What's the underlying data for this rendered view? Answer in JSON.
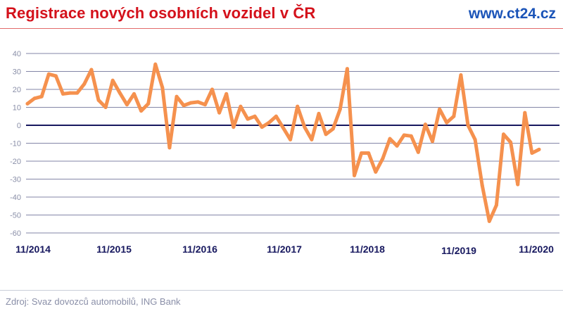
{
  "header": {
    "title": "Registrace nových osobních vozidel v ČR",
    "url": "www.ct24.cz"
  },
  "footer": {
    "source": "Zdroj: Svaz dovozců automobilů, ING Bank"
  },
  "colors": {
    "title": "#d4111b",
    "url": "#1b54b8",
    "line": "#f5914e",
    "grid": "#5a5e8a",
    "zero_line": "#17185f",
    "tick_label": "#8a8fa8",
    "x_label": "#17185f"
  },
  "chart_data": {
    "type": "line",
    "title": "Registrace nových osobních vozidel v ČR",
    "xlabel": "",
    "ylabel": "",
    "ylim": [
      -60,
      40
    ],
    "y_ticks": [
      40,
      30,
      20,
      10,
      0,
      -10,
      -20,
      -30,
      -40,
      -50,
      -60
    ],
    "x_tick_labels": [
      "11/2014",
      "11/2015",
      "11/2016",
      "11/2017",
      "11/2018",
      "11/2019",
      "11/2020"
    ],
    "grid": true,
    "series": [
      {
        "values": [
          12,
          15,
          16,
          28.5,
          27.5,
          17.5,
          18,
          18,
          23,
          31,
          14,
          10,
          25,
          18,
          11.5,
          17.5,
          8,
          12,
          34,
          21,
          -12.5,
          16,
          11,
          12.5,
          13,
          11.5,
          20,
          7,
          17.5,
          -1,
          10.5,
          3.5,
          5,
          -1,
          1.5,
          5,
          -1.5,
          -8,
          10.5,
          -1,
          -8,
          6.5,
          -5,
          -2,
          9,
          31.5,
          -28,
          -15.5,
          -15.5,
          -26,
          -18.5,
          -7.5,
          -11.5,
          -5.5,
          -6,
          -15,
          0.5,
          -9,
          9,
          1.5,
          5,
          28,
          0,
          -8,
          -33.5,
          -53.5,
          -44.5,
          -5,
          -9.5,
          -33,
          7,
          -15.5,
          -13.5
        ]
      }
    ]
  }
}
